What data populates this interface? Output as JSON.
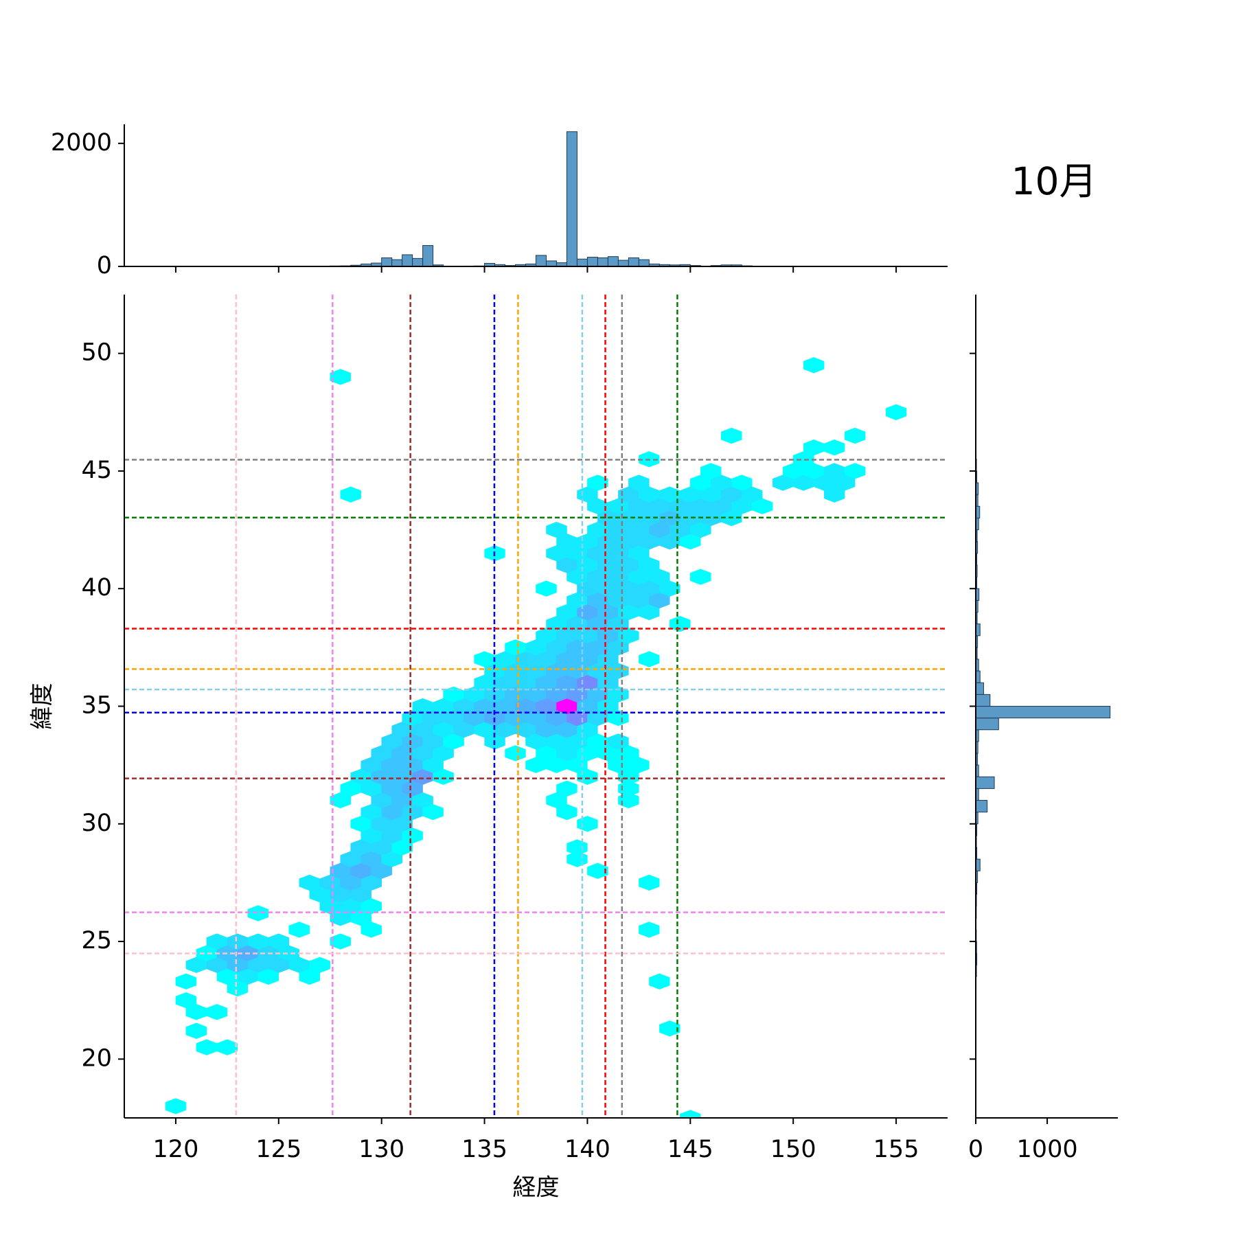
{
  "annotation": "10月",
  "chart_data": [
    {
      "type": "histogram",
      "orientation": "vertical",
      "color": "#5b9ac7",
      "xlim": [
        117.5,
        157.5
      ],
      "ylim": [
        0,
        2310
      ],
      "yticks": [
        0,
        2000
      ],
      "bins": [
        120,
        120.5,
        121,
        121.5,
        122,
        122.5,
        123,
        123.5,
        124,
        124.5,
        125,
        125.5,
        126,
        126.5,
        127,
        127.5,
        128,
        128.5,
        129,
        129.5,
        130,
        130.5,
        131,
        131.5,
        132,
        132.5,
        133,
        133.5,
        134,
        134.5,
        135,
        135.5,
        136,
        136.5,
        137,
        137.5,
        138,
        138.5,
        139,
        139.5,
        140,
        140.5,
        141,
        141.5,
        142,
        142.5,
        143,
        143.5,
        144,
        144.5,
        145,
        145.5,
        146,
        146.5,
        147,
        147.5,
        148,
        148.5,
        149,
        149.5,
        150,
        150.5,
        151,
        151.5,
        152,
        152.5,
        153,
        153.5,
        154,
        154.5,
        155
      ],
      "counts": [
        2,
        3,
        2,
        4,
        3,
        5,
        2,
        3,
        4,
        3,
        2,
        3,
        2,
        4,
        5,
        8,
        10,
        20,
        40,
        55,
        140,
        110,
        190,
        130,
        340,
        25,
        5,
        4,
        6,
        8,
        50,
        30,
        15,
        30,
        40,
        180,
        90,
        60,
        2190,
        120,
        150,
        140,
        160,
        100,
        140,
        110,
        40,
        30,
        25,
        30,
        15,
        5,
        15,
        25,
        25,
        10,
        5,
        3,
        2,
        3,
        5,
        3,
        4,
        3,
        2,
        3,
        2,
        1,
        1,
        1
      ]
    },
    {
      "type": "hexbin",
      "cmap": "cool",
      "xlabel": "経度",
      "ylabel": "緯度",
      "xlim": [
        117.5,
        157.5
      ],
      "ylim": [
        17.5,
        52.5
      ],
      "xticks": [
        120,
        125,
        130,
        135,
        140,
        145,
        150,
        155
      ],
      "yticks": [
        20,
        25,
        30,
        35,
        40,
        45,
        50
      ],
      "x": [
        120,
        121.5,
        122.5,
        121,
        121,
        122,
        120.5,
        120.5,
        121,
        122,
        123,
        124,
        125,
        126,
        121.5,
        122.5,
        123.5,
        124.5,
        125.5,
        122,
        123,
        124,
        125,
        123.5,
        122.5,
        124.5,
        126.5,
        123,
        127,
        126,
        124,
        128,
        129.5,
        143,
        128,
        129,
        127.5,
        128.5,
        129.5,
        127,
        128,
        129,
        126.5,
        127.5,
        128.5,
        129.5,
        143,
        128,
        129,
        130,
        140.5,
        128.5,
        129.5,
        130.5,
        139.5,
        129,
        130,
        131,
        139.5,
        129.5,
        130.5,
        131.5,
        129,
        130,
        131,
        140,
        129.5,
        130.5,
        131.5,
        132.5,
        139,
        128,
        130,
        131,
        132,
        138.5,
        142,
        128.5,
        129.5,
        130.5,
        131.5,
        139,
        142,
        129,
        130,
        131,
        132,
        133,
        140,
        142,
        129.5,
        130.5,
        131.5,
        132.5,
        137.5,
        138.5,
        139.5,
        141.5,
        142.5,
        130,
        131,
        132,
        133,
        136.5,
        138,
        139,
        140,
        141,
        142,
        130.5,
        131.5,
        132.5,
        133.5,
        135.5,
        137.5,
        138.5,
        139.5,
        140.5,
        141.5,
        131,
        132,
        133,
        134,
        135,
        136,
        137,
        138,
        139,
        140,
        131.5,
        132.5,
        133.5,
        134.5,
        135.5,
        136.5,
        137.5,
        138.5,
        139.5,
        140.5,
        141.5,
        132,
        133,
        134,
        135,
        136,
        137,
        138,
        139,
        140,
        141,
        133.5,
        134.5,
        135.5,
        136.5,
        137.5,
        138.5,
        139.5,
        140.5,
        141.5,
        135,
        136,
        137,
        138,
        139,
        140,
        141,
        135.5,
        136.5,
        137.5,
        138.5,
        139.5,
        140.5,
        141.5,
        135,
        136,
        137,
        138,
        139,
        140,
        141,
        143,
        136.5,
        137.5,
        138.5,
        139.5,
        140.5,
        141.5,
        138,
        139,
        140,
        141,
        142,
        138.5,
        139.5,
        140.5,
        141.5,
        144.5,
        139,
        140,
        141,
        142,
        143,
        139.5,
        140.5,
        141.5,
        142.5,
        143.5,
        138,
        140,
        141,
        142,
        143,
        144,
        139.5,
        140.5,
        141.5,
        142.5,
        143.5,
        145.5,
        139,
        140,
        141,
        142,
        143,
        135.5,
        138.5,
        139.5,
        140.5,
        141.5,
        142.5,
        139,
        140,
        141,
        142,
        143,
        144,
        145,
        138.5,
        140.5,
        141.5,
        142.5,
        143.5,
        144.5,
        145.5,
        141,
        142,
        143,
        144,
        145,
        146,
        147,
        140.5,
        141.5,
        142.5,
        143.5,
        144.5,
        145.5,
        146.5,
        147.5,
        148.5,
        128.5,
        140,
        142,
        143,
        144,
        145,
        146,
        147,
        148,
        152,
        140.5,
        142.5,
        145.5,
        146.5,
        147.5,
        149.5,
        150.5,
        151.5,
        152.5,
        146,
        150,
        151,
        152,
        153,
        143,
        150.5,
        151,
        152,
        147,
        153,
        155,
        128,
        151,
        143.5,
        144,
        145
      ],
      "y": [
        18,
        20.5,
        20.5,
        21.2,
        22,
        22,
        22.5,
        23.3,
        24,
        24,
        24,
        24,
        24,
        24,
        24.5,
        24.5,
        24.5,
        24.5,
        24.5,
        25,
        25,
        25,
        25,
        23.5,
        23.5,
        23.5,
        23.5,
        23,
        24,
        25.5,
        26.2,
        25,
        25.5,
        25.5,
        26,
        26,
        26.5,
        26.5,
        26.5,
        27,
        27,
        27,
        27.5,
        27.5,
        27.5,
        27.5,
        27.5,
        28,
        28,
        28,
        28,
        28.5,
        28.5,
        28.5,
        28.5,
        29,
        29,
        29,
        29,
        29.5,
        29.5,
        29.5,
        30,
        30,
        30,
        30,
        30.5,
        30.5,
        30.5,
        30.5,
        30.5,
        31,
        31,
        31,
        31,
        31,
        31,
        31.5,
        31.5,
        31.5,
        31.5,
        31.5,
        31.5,
        32,
        32,
        32,
        32,
        32,
        32,
        32,
        32.5,
        32.5,
        32.5,
        32.5,
        32.5,
        32.5,
        32.5,
        32.5,
        32.5,
        33,
        33,
        33,
        33,
        33,
        33,
        33,
        33,
        33,
        33,
        33.5,
        33.5,
        33.5,
        33.5,
        33.5,
        33.5,
        33.5,
        33.5,
        33.5,
        33.5,
        34,
        34,
        34,
        34,
        34,
        34,
        34,
        34,
        34,
        34,
        34.5,
        34.5,
        34.5,
        34.5,
        34.5,
        34.5,
        34.5,
        34.5,
        34.5,
        34.5,
        34.5,
        35,
        35,
        35,
        35,
        35,
        35,
        35,
        35,
        35,
        35,
        35.5,
        35.5,
        35.5,
        35.5,
        35.5,
        35.5,
        35.5,
        35.5,
        35.5,
        36,
        36,
        36,
        36,
        36,
        36,
        36,
        36.5,
        36.5,
        36.5,
        36.5,
        36.5,
        36.5,
        36.5,
        37,
        37,
        37,
        37,
        37,
        37,
        37,
        37,
        37.5,
        37.5,
        37.5,
        37.5,
        37.5,
        37.5,
        38,
        38,
        38,
        38,
        38,
        38.5,
        38.5,
        38.5,
        38.5,
        38.5,
        39,
        39,
        39,
        39,
        39,
        39.5,
        39.5,
        39.5,
        39.5,
        39.5,
        40,
        40,
        40,
        40,
        40,
        40,
        40.5,
        40.5,
        40.5,
        40.5,
        40.5,
        40.5,
        41,
        41,
        41,
        41,
        41,
        41.5,
        41.5,
        41.5,
        41.5,
        41.5,
        41.5,
        42,
        42,
        42,
        42,
        42,
        42,
        42,
        42.5,
        42.5,
        42.5,
        42.5,
        42.5,
        42.5,
        42.5,
        43,
        43,
        43,
        43,
        43,
        43,
        43,
        43.5,
        43.5,
        43.5,
        43.5,
        43.5,
        43.5,
        43.5,
        43.5,
        43.5,
        44,
        44,
        44,
        44,
        44,
        44,
        44,
        44,
        44,
        44,
        44.5,
        44.5,
        44.5,
        44.5,
        44.5,
        44.5,
        44.5,
        44.5,
        44.5,
        45,
        45,
        45,
        45,
        45,
        45.5,
        45.5,
        46,
        46,
        46.5,
        46.5,
        47.5,
        49,
        49.5,
        23.3,
        21.3,
        17.5
      ],
      "values": [
        1,
        1,
        1,
        1,
        1,
        1,
        1,
        1,
        2,
        3,
        4,
        3,
        3,
        2,
        1,
        4,
        5,
        3,
        2,
        2,
        3,
        2,
        2,
        2,
        1,
        1,
        1,
        1,
        1,
        1,
        1,
        1,
        1,
        1,
        2,
        1,
        2,
        2,
        1,
        2,
        3,
        3,
        2,
        3,
        4,
        3,
        1,
        4,
        5,
        4,
        1,
        3,
        4,
        2,
        1,
        3,
        3,
        1,
        1,
        2,
        3,
        1,
        1,
        3,
        3,
        1,
        2,
        4,
        3,
        1,
        1,
        1,
        3,
        4,
        2,
        1,
        1,
        1,
        2,
        4,
        5,
        1,
        1,
        2,
        4,
        4,
        6,
        1,
        1,
        1,
        3,
        4,
        4,
        2,
        1,
        1,
        1,
        1,
        1,
        3,
        4,
        3,
        2,
        1,
        1,
        2,
        1,
        1,
        1,
        3,
        4,
        3,
        1,
        2,
        2,
        2,
        2,
        1,
        2,
        3,
        3,
        2,
        3,
        2,
        3,
        3,
        4,
        4,
        2,
        2,
        3,
        3,
        4,
        5,
        4,
        4,
        5,
        7,
        3,
        1,
        2,
        2,
        3,
        4,
        4,
        5,
        6,
        14,
        4,
        2,
        1,
        2,
        3,
        4,
        4,
        5,
        6,
        4,
        2,
        2,
        3,
        3,
        4,
        5,
        7,
        3,
        2,
        3,
        3,
        4,
        4,
        3,
        3,
        1,
        2,
        3,
        3,
        4,
        4,
        3,
        1,
        1,
        2,
        3,
        4,
        4,
        3,
        2,
        3,
        3,
        4,
        2,
        2,
        3,
        4,
        3,
        1,
        2,
        5,
        4,
        2,
        2,
        2,
        4,
        3,
        3,
        4,
        1,
        3,
        3,
        3,
        3,
        2,
        2,
        3,
        3,
        2,
        2,
        1,
        3,
        2,
        3,
        3,
        2,
        1,
        2,
        2,
        3,
        3,
        2,
        2,
        2,
        3,
        3,
        3,
        3,
        1,
        2,
        2,
        3,
        3,
        4,
        3,
        2,
        3,
        3,
        3,
        4,
        3,
        3,
        2,
        2,
        2,
        3,
        3,
        3,
        3,
        3,
        2,
        1,
        1,
        2,
        3,
        2,
        2,
        2,
        2,
        3,
        2,
        2,
        1,
        2,
        1,
        2,
        1,
        2,
        2,
        2,
        2,
        1,
        1,
        1,
        2,
        1,
        1,
        1,
        1,
        1,
        1,
        1,
        1,
        1,
        1,
        1,
        1,
        1
      ],
      "vlines": [
        {
          "value": 122.93,
          "color": "pink"
        },
        {
          "value": 127.62,
          "color": "violet"
        },
        {
          "value": 131.4,
          "color": "brown"
        },
        {
          "value": 135.48,
          "color": "blue"
        },
        {
          "value": 136.63,
          "color": "orange"
        },
        {
          "value": 139.75,
          "color": "skyblue"
        },
        {
          "value": 140.87,
          "color": "red"
        },
        {
          "value": 141.68,
          "color": "gray"
        },
        {
          "value": 144.37,
          "color": "green"
        }
      ],
      "hlines": [
        {
          "value": 45.48,
          "color": "gray"
        },
        {
          "value": 43.02,
          "color": "green"
        },
        {
          "value": 38.3,
          "color": "red"
        },
        {
          "value": 36.58,
          "color": "orange"
        },
        {
          "value": 35.71,
          "color": "skyblue"
        },
        {
          "value": 34.73,
          "color": "blue"
        },
        {
          "value": 31.93,
          "color": "brown"
        },
        {
          "value": 26.24,
          "color": "violet"
        },
        {
          "value": 24.49,
          "color": "pink"
        }
      ]
    },
    {
      "type": "histogram",
      "orientation": "horizontal",
      "color": "#5b9ac7",
      "xlim": [
        0,
        1989
      ],
      "xticks": [
        0,
        1000
      ],
      "ylim": [
        17.5,
        52.5
      ],
      "bins": [
        20,
        20.5,
        21,
        21.5,
        22,
        22.5,
        23,
        23.5,
        24,
        24.5,
        25,
        25.5,
        26,
        26.5,
        27,
        27.5,
        28,
        28.5,
        29,
        29.5,
        30,
        30.5,
        31,
        31.5,
        32,
        32.5,
        33,
        33.5,
        34,
        34.5,
        35,
        35.5,
        36,
        36.5,
        37,
        37.5,
        38,
        38.5,
        39,
        39.5,
        40,
        40.5,
        41,
        41.5,
        42,
        42.5,
        43,
        43.5,
        44,
        44.5,
        45,
        45.5,
        46
      ],
      "counts": [
        0,
        2,
        2,
        3,
        3,
        3,
        5,
        10,
        15,
        12,
        8,
        5,
        8,
        10,
        15,
        25,
        60,
        15,
        10,
        15,
        30,
        160,
        40,
        260,
        40,
        25,
        30,
        40,
        320,
        1880,
        200,
        110,
        60,
        40,
        20,
        25,
        60,
        20,
        30,
        45,
        15,
        20,
        15,
        25,
        20,
        40,
        55,
        30,
        35,
        15,
        10,
        5
      ]
    }
  ]
}
